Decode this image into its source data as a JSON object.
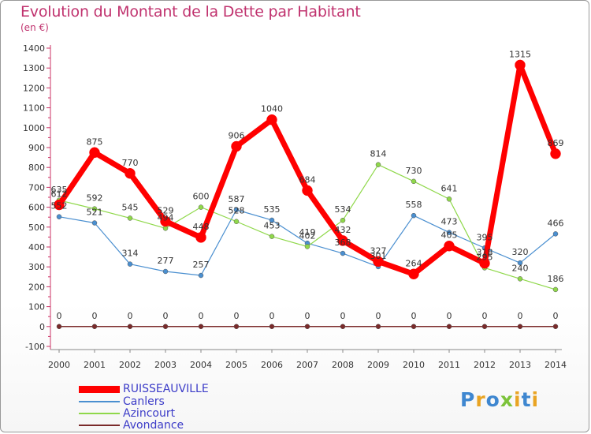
{
  "title": "Evolution du Montant de la Dette par Habitant",
  "subtitle": "(en €)",
  "logo": "Proxiti",
  "chart_data": {
    "type": "line",
    "title": "Evolution du Montant de la Dette par Habitant",
    "ylabel": "(en €)",
    "x": [
      "2000",
      "2001",
      "2002",
      "2003",
      "2004",
      "2005",
      "2006",
      "2007",
      "2008",
      "2009",
      "2010",
      "2011",
      "2012",
      "2013",
      "2014"
    ],
    "ylim": [
      -100,
      1400
    ],
    "yticks": [
      -100,
      0,
      100,
      200,
      300,
      400,
      500,
      600,
      700,
      800,
      900,
      1000,
      1100,
      1200,
      1300,
      1400
    ],
    "grid": false,
    "legend_placement": "bottom-left",
    "series": [
      {
        "name": "RUISSEAUVILLE",
        "color": "#ff0000",
        "values": [
          612,
          875,
          770,
          529,
          448,
          906,
          1040,
          684,
          432,
          327,
          264,
          405,
          318,
          1315,
          869
        ]
      },
      {
        "name": "Canlers",
        "color": "#4a8fd0",
        "values": [
          552,
          521,
          314,
          277,
          257,
          587,
          535,
          419,
          368,
          301,
          558,
          473,
          395,
          320,
          466
        ]
      },
      {
        "name": "Azincourt",
        "color": "#8fd84a",
        "values": [
          635,
          592,
          545,
          494,
          600,
          528,
          453,
          402,
          534,
          814,
          730,
          641,
          295,
          240,
          186
        ]
      },
      {
        "name": "Avondance",
        "color": "#7a2a2a",
        "values": [
          0,
          0,
          0,
          0,
          0,
          0,
          0,
          0,
          0,
          0,
          0,
          0,
          0,
          0,
          0
        ]
      }
    ],
    "labels": {
      "RUISSEAUVILLE": [
        "612",
        "875",
        "770",
        "529",
        "448",
        "906",
        "1040",
        "684",
        "432",
        "327",
        "264",
        "405",
        "318",
        "1315",
        "869"
      ],
      "Canlers": [
        "552",
        "521",
        "314",
        "277",
        "257",
        "587",
        "535",
        "419",
        "368",
        "301",
        "558",
        "473",
        "395",
        "320",
        "466"
      ],
      "Azincourt": [
        "635",
        "592",
        "545",
        "494",
        "600",
        "528",
        "453",
        "402",
        "534",
        "814",
        "730",
        "641",
        "295",
        "240",
        "186"
      ],
      "Avondance": [
        "0",
        "0",
        "0",
        "0",
        "0",
        "0",
        "0",
        "0",
        "0",
        "0",
        "0",
        "0",
        "0",
        "0",
        "0"
      ]
    }
  }
}
